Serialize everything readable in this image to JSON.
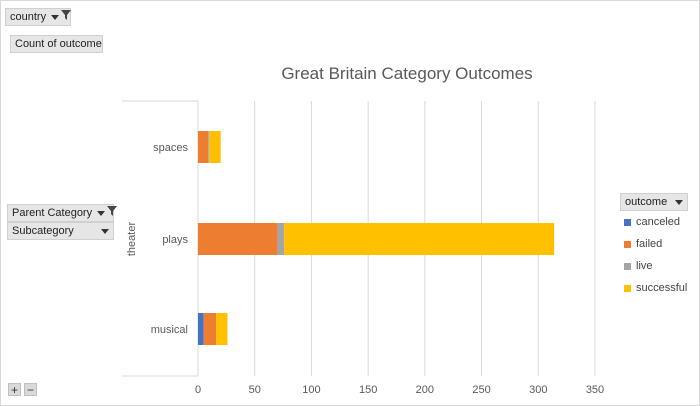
{
  "filters": {
    "country": "country",
    "values_field": "Count of outcome",
    "parent_category": "Parent Category",
    "subcategory": "Subcategory",
    "legend_field": "outcome",
    "expand": "+",
    "collapse": "−"
  },
  "colors": {
    "canceled": "#4472c4",
    "failed": "#ed7d31",
    "live": "#a5a5a5",
    "successful": "#ffc000",
    "grid": "#d9d9d9",
    "text": "#595959"
  },
  "icons": [
    "dropdown-arrow-icon",
    "filter-funnel-icon",
    "plus-icon",
    "minus-icon"
  ],
  "chart_data": {
    "type": "bar",
    "orientation": "horizontal",
    "stacked": true,
    "title": "Great Britain Category Outcomes",
    "group_label": "theater",
    "categories": [
      "spaces",
      "plays",
      "musical"
    ],
    "series": [
      {
        "name": "canceled",
        "values": [
          0,
          0,
          5
        ]
      },
      {
        "name": "failed",
        "values": [
          9,
          70,
          11
        ]
      },
      {
        "name": "live",
        "values": [
          1,
          6,
          0
        ]
      },
      {
        "name": "successful",
        "values": [
          10,
          238,
          10
        ]
      }
    ],
    "xlim": [
      0,
      350
    ],
    "xticks": [
      "0",
      "50",
      "100",
      "150",
      "200",
      "250",
      "300",
      "350"
    ],
    "grid": true,
    "legend_position": "right"
  }
}
